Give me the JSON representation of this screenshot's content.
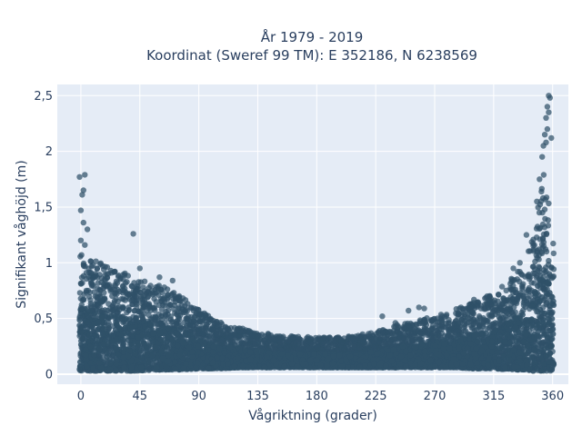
{
  "chart_data": {
    "type": "scatter",
    "title_line1": "År 1979 - 2019",
    "title_line2": "Koordinat (Sweref 99 TM): E 352186, N 6238569",
    "xlabel": "Vågriktning (grader)",
    "ylabel": "Signifikant våghöjd (m)",
    "xlim": [
      -18,
      372
    ],
    "ylim": [
      -0.09,
      2.6
    ],
    "x_ticks": [
      0,
      45,
      90,
      135,
      180,
      225,
      270,
      315,
      360
    ],
    "x_tick_labels": [
      "0",
      "45",
      "90",
      "135",
      "180",
      "225",
      "270",
      "315",
      "360"
    ],
    "y_ticks": [
      0,
      0.5,
      1,
      1.5,
      2,
      2.5
    ],
    "y_tick_labels": [
      "0",
      "0,5",
      "1",
      "1,5",
      "2",
      "2,5"
    ],
    "grid": true,
    "marker_color": "#2f5168",
    "plot_background": "#e5ecf6",
    "envelope": {
      "x": [
        0,
        10,
        20,
        30,
        45,
        60,
        75,
        90,
        105,
        120,
        135,
        150,
        165,
        180,
        195,
        210,
        225,
        240,
        255,
        270,
        285,
        300,
        315,
        330,
        340,
        345,
        350,
        355,
        360
      ],
      "upper": [
        1.1,
        1.02,
        0.98,
        0.95,
        0.85,
        0.8,
        0.72,
        0.58,
        0.47,
        0.42,
        0.38,
        0.35,
        0.34,
        0.33,
        0.33,
        0.35,
        0.38,
        0.44,
        0.48,
        0.52,
        0.58,
        0.65,
        0.72,
        0.88,
        1.05,
        1.25,
        1.6,
        1.9,
        1.2
      ],
      "lower": [
        0.03,
        0.03,
        0.03,
        0.03,
        0.03,
        0.04,
        0.04,
        0.05,
        0.05,
        0.06,
        0.06,
        0.06,
        0.06,
        0.06,
        0.06,
        0.06,
        0.06,
        0.06,
        0.06,
        0.06,
        0.06,
        0.05,
        0.05,
        0.04,
        0.04,
        0.03,
        0.03,
        0.03,
        0.03
      ]
    },
    "outliers": {
      "x": [
        -1,
        1,
        2,
        3,
        0,
        2,
        5,
        0,
        3,
        40,
        45,
        60,
        70,
        230,
        250,
        258,
        262,
        240,
        275,
        300,
        310,
        330,
        335,
        340,
        348,
        350,
        352,
        353,
        354,
        355,
        356,
        357,
        358,
        357,
        356,
        355,
        359
      ],
      "y": [
        1.77,
        1.61,
        1.65,
        1.79,
        1.47,
        1.36,
        1.3,
        1.2,
        1.16,
        1.26,
        0.95,
        0.87,
        0.84,
        0.52,
        0.57,
        0.6,
        0.59,
        0.46,
        0.48,
        0.67,
        0.7,
        0.95,
        1.0,
        1.25,
        1.55,
        1.75,
        1.95,
        2.05,
        2.15,
        2.3,
        2.4,
        2.5,
        2.48,
        2.35,
        2.2,
        2.08,
        2.12
      ]
    }
  }
}
